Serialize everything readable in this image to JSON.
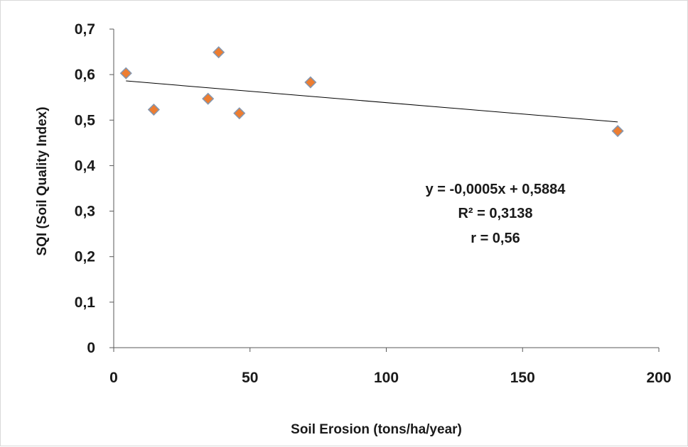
{
  "chart_data": {
    "type": "scatter",
    "xlabel": "Soil Erosion (tons/ha/year)",
    "ylabel": "SQI (Soil Quality Index)",
    "xlim": [
      0,
      200
    ],
    "ylim": [
      0,
      0.7
    ],
    "xticks": [
      0,
      50,
      100,
      150,
      200
    ],
    "xtick_labels": [
      "0",
      "50",
      "100",
      "150",
      "200"
    ],
    "yticks": [
      0,
      0.1,
      0.2,
      0.3,
      0.4,
      0.5,
      0.6,
      0.7
    ],
    "ytick_labels": [
      "0",
      "0,1",
      "0,2",
      "0,3",
      "0,4",
      "0,5",
      "0,6",
      "0,7"
    ],
    "grid": false,
    "marker": "diamond",
    "marker_color": "#ED7D31",
    "marker_edge_color": "#8497B0",
    "trendline_color": "#000000",
    "points": [
      {
        "x": 4.5,
        "y": 0.603
      },
      {
        "x": 14.7,
        "y": 0.523
      },
      {
        "x": 34.6,
        "y": 0.547
      },
      {
        "x": 38.5,
        "y": 0.649
      },
      {
        "x": 46.1,
        "y": 0.515
      },
      {
        "x": 72.2,
        "y": 0.583
      },
      {
        "x": 184.9,
        "y": 0.476
      }
    ],
    "trendline": {
      "x": [
        4.5,
        184.9
      ],
      "slope": -0.0005,
      "intercept": 0.5884
    },
    "annotations": [
      "y = -0,0005x + 0,5884",
      "R² = 0,3138",
      "r = 0,56"
    ]
  }
}
